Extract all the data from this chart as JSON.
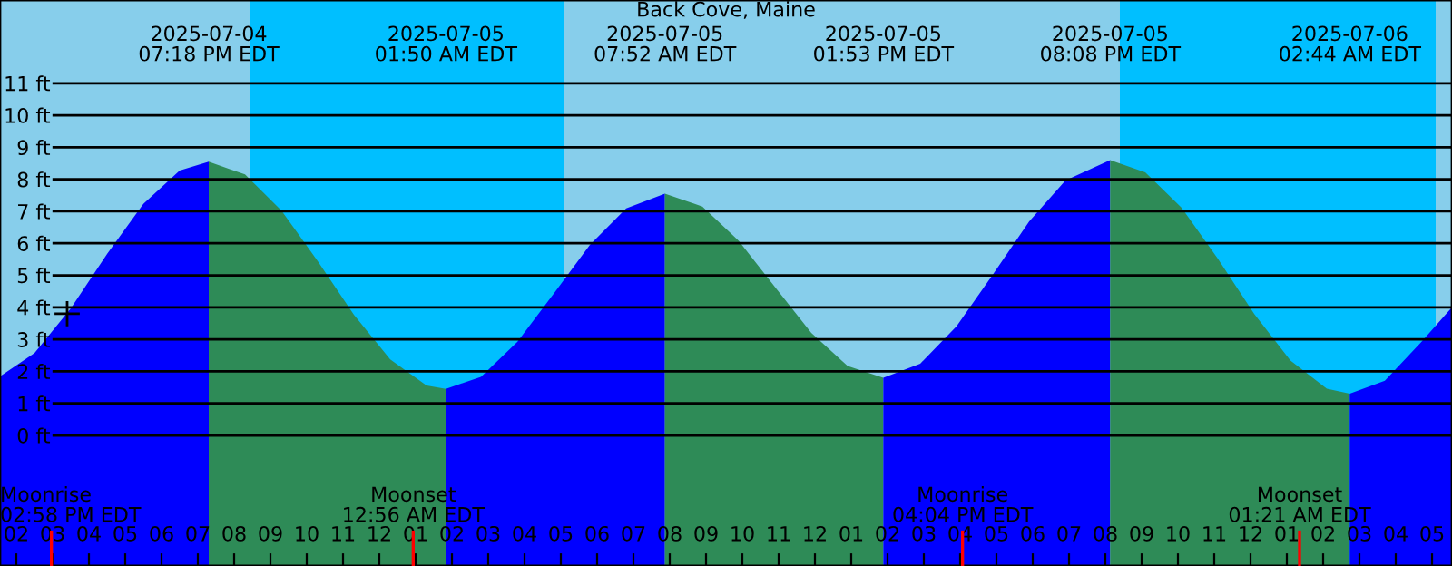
{
  "chart_data": {
    "type": "area",
    "title": "Back Cove, Maine",
    "xlim": [
      "2025-07-04T13:33",
      "2025-07-06T05:33"
    ],
    "ylim": [
      -4.08,
      13.6
    ],
    "xticks": [
      {
        "value": "2025-07-04T14:00",
        "label": "02"
      },
      {
        "value": "2025-07-04T15:00",
        "label": "03"
      },
      {
        "value": "2025-07-04T16:00",
        "label": "04"
      },
      {
        "value": "2025-07-04T17:00",
        "label": "05"
      },
      {
        "value": "2025-07-04T18:00",
        "label": "06"
      },
      {
        "value": "2025-07-04T19:00",
        "label": "07"
      },
      {
        "value": "2025-07-04T20:00",
        "label": "08"
      },
      {
        "value": "2025-07-04T21:00",
        "label": "09"
      },
      {
        "value": "2025-07-04T22:00",
        "label": "10"
      },
      {
        "value": "2025-07-04T23:00",
        "label": "11"
      },
      {
        "value": "2025-07-05T00:00",
        "label": "12"
      },
      {
        "value": "2025-07-05T01:00",
        "label": "01"
      },
      {
        "value": "2025-07-05T02:00",
        "label": "02"
      },
      {
        "value": "2025-07-05T03:00",
        "label": "03"
      },
      {
        "value": "2025-07-05T04:00",
        "label": "04"
      },
      {
        "value": "2025-07-05T05:00",
        "label": "05"
      },
      {
        "value": "2025-07-05T06:00",
        "label": "06"
      },
      {
        "value": "2025-07-05T07:00",
        "label": "07"
      },
      {
        "value": "2025-07-05T08:00",
        "label": "08"
      },
      {
        "value": "2025-07-05T09:00",
        "label": "09"
      },
      {
        "value": "2025-07-05T10:00",
        "label": "10"
      },
      {
        "value": "2025-07-05T11:00",
        "label": "11"
      },
      {
        "value": "2025-07-05T12:00",
        "label": "12"
      },
      {
        "value": "2025-07-05T13:00",
        "label": "01"
      },
      {
        "value": "2025-07-05T14:00",
        "label": "02"
      },
      {
        "value": "2025-07-05T15:00",
        "label": "03"
      },
      {
        "value": "2025-07-05T16:00",
        "label": "04"
      },
      {
        "value": "2025-07-05T17:00",
        "label": "05"
      },
      {
        "value": "2025-07-05T18:00",
        "label": "06"
      },
      {
        "value": "2025-07-05T19:00",
        "label": "07"
      },
      {
        "value": "2025-07-05T20:00",
        "label": "08"
      },
      {
        "value": "2025-07-05T21:00",
        "label": "09"
      },
      {
        "value": "2025-07-05T22:00",
        "label": "10"
      },
      {
        "value": "2025-07-05T23:00",
        "label": "11"
      },
      {
        "value": "2025-07-06T00:00",
        "label": "12"
      },
      {
        "value": "2025-07-06T01:00",
        "label": "01"
      },
      {
        "value": "2025-07-06T02:00",
        "label": "02"
      },
      {
        "value": "2025-07-06T03:00",
        "label": "03"
      },
      {
        "value": "2025-07-06T04:00",
        "label": "04"
      },
      {
        "value": "2025-07-06T05:00",
        "label": "05"
      }
    ],
    "yticks": [
      {
        "value": 0,
        "label": "0 ft"
      },
      {
        "value": 1,
        "label": "1 ft"
      },
      {
        "value": 2,
        "label": "2 ft"
      },
      {
        "value": 3,
        "label": "3 ft"
      },
      {
        "value": 4,
        "label": "4 ft"
      },
      {
        "value": 5,
        "label": "5 ft"
      },
      {
        "value": 6,
        "label": "6 ft"
      },
      {
        "value": 7,
        "label": "7 ft"
      },
      {
        "value": 8,
        "label": "8 ft"
      },
      {
        "value": 9,
        "label": "9 ft"
      },
      {
        "value": 10,
        "label": "10 ft"
      },
      {
        "value": 11,
        "label": "11 ft"
      }
    ],
    "grid": "y",
    "legend": false,
    "bands": [
      {
        "axis": "x",
        "from": "2025-07-04T13:33",
        "to": "2025-07-04T20:27",
        "color": "#87ceeb"
      },
      {
        "axis": "x",
        "from": "2025-07-04T20:27",
        "to": "2025-07-05T05:06",
        "color": "#00bfff"
      },
      {
        "axis": "x",
        "from": "2025-07-05T05:06",
        "to": "2025-07-05T20:24",
        "color": "#87ceeb"
      },
      {
        "axis": "x",
        "from": "2025-07-05T20:24",
        "to": "2025-07-06T05:06",
        "color": "#00bfff"
      },
      {
        "axis": "x",
        "from": "2025-07-06T05:06",
        "to": "2025-07-06T05:33",
        "color": "#87ceeb"
      }
    ],
    "ref_lines": [
      {
        "axis": "x",
        "value": "2025-07-04T14:58",
        "label": "Moonrise\n02:58 PM EDT",
        "color": "#ff0000"
      },
      {
        "axis": "x",
        "value": "2025-07-05T00:56",
        "label": "Moonset\n12:56 AM EDT",
        "color": "#ff0000"
      },
      {
        "axis": "x",
        "value": "2025-07-05T16:04",
        "label": "Moonrise\n04:04 PM EDT",
        "color": "#ff0000"
      },
      {
        "axis": "x",
        "value": "2025-07-06T01:21",
        "label": "Moonset\n01:21 AM EDT",
        "color": "#ff0000"
      }
    ],
    "series": [
      {
        "color": "#0000ff",
        "x": [
          "2025-07-04T13:33",
          "2025-07-04T14:30",
          "2025-07-04T15:30",
          "2025-07-04T16:30",
          "2025-07-04T17:30",
          "2025-07-04T18:30",
          "2025-07-04T19:18"
        ],
        "values": [
          1.84,
          2.57,
          3.97,
          5.67,
          7.23,
          8.27,
          8.55
        ]
      },
      {
        "color": "#2e8b57",
        "x": [
          "2025-07-04T19:18",
          "2025-07-04T20:18",
          "2025-07-04T21:18",
          "2025-07-04T22:18",
          "2025-07-04T23:18",
          "2025-07-05T00:18",
          "2025-07-05T01:18",
          "2025-07-05T01:50"
        ],
        "values": [
          8.55,
          8.15,
          7.03,
          5.45,
          3.77,
          2.37,
          1.56,
          1.45
        ]
      },
      {
        "color": "#0000ff",
        "x": [
          "2025-07-05T01:50",
          "2025-07-05T02:48",
          "2025-07-05T03:48",
          "2025-07-05T04:48",
          "2025-07-05T05:48",
          "2025-07-05T06:48",
          "2025-07-05T07:52"
        ],
        "values": [
          1.45,
          1.83,
          2.92,
          4.42,
          5.95,
          7.09,
          7.55
        ]
      },
      {
        "color": "#2e8b57",
        "x": [
          "2025-07-05T07:52",
          "2025-07-05T08:54",
          "2025-07-05T09:54",
          "2025-07-05T10:54",
          "2025-07-05T11:54",
          "2025-07-05T12:54",
          "2025-07-05T13:53"
        ],
        "values": [
          7.55,
          7.15,
          6.08,
          4.63,
          3.2,
          2.17,
          1.8
        ]
      },
      {
        "color": "#0000ff",
        "x": [
          "2025-07-05T13:53",
          "2025-07-05T14:54",
          "2025-07-05T15:54",
          "2025-07-05T16:54",
          "2025-07-05T17:54",
          "2025-07-05T18:54",
          "2025-07-05T20:08"
        ],
        "values": [
          1.8,
          2.24,
          3.41,
          5.02,
          6.68,
          7.96,
          8.6
        ]
      },
      {
        "color": "#2e8b57",
        "x": [
          "2025-07-05T20:08",
          "2025-07-05T21:06",
          "2025-07-05T22:06",
          "2025-07-05T23:06",
          "2025-07-06T00:06",
          "2025-07-06T01:06",
          "2025-07-06T02:06",
          "2025-07-06T02:44"
        ],
        "values": [
          8.6,
          8.22,
          7.11,
          5.52,
          3.8,
          2.34,
          1.46,
          1.3
        ]
      },
      {
        "color": "#0000ff",
        "x": [
          "2025-07-06T02:44",
          "2025-07-06T03:42",
          "2025-07-06T04:42",
          "2025-07-06T05:33"
        ],
        "values": [
          1.3,
          1.71,
          2.91,
          4.0
        ]
      },
      {
        "type": "scatter",
        "marker": "cross",
        "color": "#000000",
        "x": [
          "2025-07-04T15:24"
        ],
        "values": [
          3.8
        ]
      }
    ],
    "annotations": [
      "2025-07-04\n07:18 PM EDT",
      "2025-07-05\n01:50 AM EDT",
      "2025-07-05\n07:52 AM EDT",
      "2025-07-05\n01:53 PM EDT",
      "2025-07-05\n08:08 PM EDT",
      "2025-07-06\n02:44 AM EDT"
    ]
  }
}
